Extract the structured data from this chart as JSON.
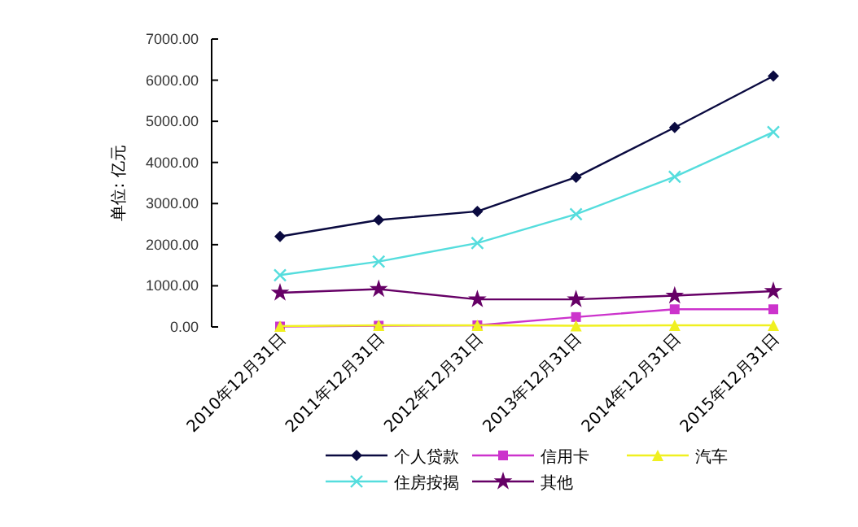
{
  "chart_data": {
    "type": "line",
    "ylabel": "单位: 亿元",
    "categories": [
      "2010年12月31日",
      "2011年12月31日",
      "2012年12月31日",
      "2013年12月31日",
      "2014年12月31日",
      "2015年12月31日"
    ],
    "ylim": [
      0,
      7000
    ],
    "yticks": [
      {
        "value": 0,
        "label": "0.00"
      },
      {
        "value": 1000,
        "label": "1000.00"
      },
      {
        "value": 2000,
        "label": "2000.00"
      },
      {
        "value": 3000,
        "label": "3000.00"
      },
      {
        "value": 4000,
        "label": "4000.00"
      },
      {
        "value": 5000,
        "label": "5000.00"
      },
      {
        "value": 6000,
        "label": "6000.00"
      },
      {
        "value": 7000,
        "label": "7000.00"
      }
    ],
    "grid": false,
    "legend": "bottom",
    "series": [
      {
        "name": "个人贷款",
        "color": "#0a0a40",
        "marker": "diamond",
        "values": [
          2200,
          2600,
          2810,
          3640,
          4850,
          6100
        ]
      },
      {
        "name": "信用卡",
        "color": "#cc33cc",
        "marker": "square",
        "values": [
          10,
          30,
          40,
          240,
          430,
          430
        ]
      },
      {
        "name": "汽车",
        "color": "#f0f020",
        "marker": "triangle",
        "values": [
          20,
          40,
          40,
          30,
          40,
          40
        ]
      },
      {
        "name": "住房按揭",
        "color": "#55dddd",
        "marker": "cross",
        "values": [
          1260,
          1590,
          2040,
          2740,
          3650,
          4740
        ]
      },
      {
        "name": "其他",
        "color": "#660066",
        "marker": "star",
        "values": [
          830,
          920,
          670,
          670,
          760,
          870
        ]
      }
    ]
  }
}
